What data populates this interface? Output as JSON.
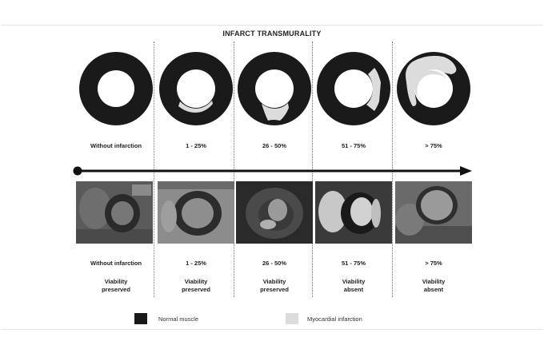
{
  "title": "INFARCT TRANSMURALITY",
  "colors": {
    "muscle": "#1a1a1a",
    "infarct": "#dcdcdc",
    "background": "#ffffff"
  },
  "columns": [
    {
      "label": "Without infarction",
      "viability": "Viability\npreserved"
    },
    {
      "label": "1 - 25%",
      "viability": "Viability\npreserved"
    },
    {
      "label": "26 - 50%",
      "viability": "Viability\npreserved"
    },
    {
      "label": "51 - 75%",
      "viability": "Viability\nabsent"
    },
    {
      "label": "> 75%",
      "viability": "Viability\nabsent"
    }
  ],
  "legend": {
    "muscle": "Normal muscle",
    "infarct": "Myocardial infarction"
  }
}
